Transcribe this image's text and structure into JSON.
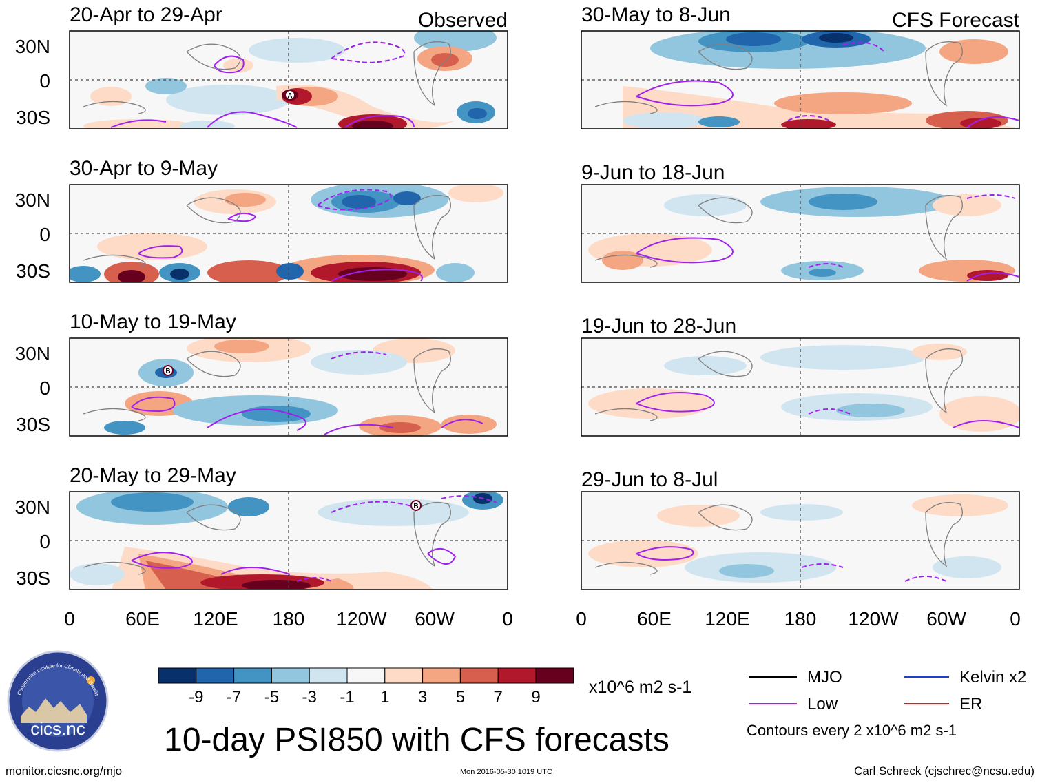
{
  "figure": {
    "title": "10-day PSI850 with CFS forecasts",
    "observed_label": "Observed",
    "forecast_label": "CFS Forecast",
    "y_ticks": [
      "30N",
      "0",
      "30S"
    ],
    "x_ticks": [
      "0",
      "60E",
      "120E",
      "180",
      "120W",
      "60W",
      "0"
    ]
  },
  "panels": [
    {
      "period": "20-Apr to 29-Apr",
      "type": "observed",
      "marker": "A"
    },
    {
      "period": "30-Apr to 9-May",
      "type": "observed"
    },
    {
      "period": "10-May to 19-May",
      "type": "observed",
      "marker": "B"
    },
    {
      "period": "20-May to 29-May",
      "type": "observed",
      "marker": "B"
    },
    {
      "period": "30-May to 8-Jun",
      "type": "forecast"
    },
    {
      "period": "9-Jun to 18-Jun",
      "type": "forecast"
    },
    {
      "period": "19-Jun to 28-Jun",
      "type": "forecast"
    },
    {
      "period": "29-Jun to 8-Jul",
      "type": "forecast"
    }
  ],
  "colorbar": {
    "labels": [
      "-9",
      "-7",
      "-5",
      "-3",
      "-1",
      "1",
      "3",
      "5",
      "7",
      "9"
    ],
    "colors": [
      "#08306b",
      "#2166ac",
      "#4393c3",
      "#92c5de",
      "#d1e5f0",
      "#f7f7f7",
      "#fddbc7",
      "#f4a582",
      "#d6604d",
      "#b2182b",
      "#67001f"
    ],
    "units": "x10^6 m2 s-1"
  },
  "legend": {
    "items": [
      {
        "label": "MJO",
        "color": "#000000"
      },
      {
        "label": "Kelvin x2",
        "color": "#1f3fd0"
      },
      {
        "label": "Low",
        "color": "#a020f0"
      },
      {
        "label": "ER",
        "color": "#d62020"
      }
    ],
    "note": "Contours every 2 x10^6 m2 s-1"
  },
  "logo": {
    "text": "cics.nc",
    "ring_text": "Cooperative Institute for Climate and Satellites"
  },
  "footer": {
    "url": "monitor.cicsnc.org/mjo",
    "timestamp": "Mon 2016-05-30 1019 UTC",
    "credit": "Carl Schreck (cjschrec@ncsu.edu)"
  }
}
